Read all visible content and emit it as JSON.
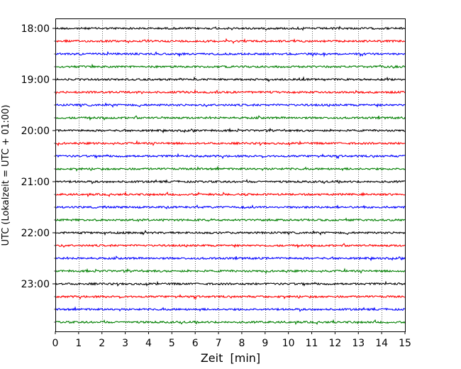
{
  "chart_data": {
    "type": "line",
    "xlabel": "Zeit  [min]",
    "ylabel": "UTC (Lokalzeit = UTC + 01:00)",
    "xlim": [
      0,
      15
    ],
    "x_ticks": [
      0,
      1,
      2,
      3,
      4,
      5,
      6,
      7,
      8,
      9,
      10,
      11,
      12,
      13,
      14,
      15
    ],
    "y_tick_labels": [
      "18:00",
      "19:00",
      "20:00",
      "21:00",
      "22:00",
      "23:00"
    ],
    "start_hour": "18:00",
    "end_hour": "24:00",
    "trace_interval_minutes": 15,
    "trace_count": 24,
    "trace_colors": [
      "#000000",
      "#ff0000",
      "#0000ff",
      "#007f00"
    ],
    "vertical_grid": "dotted",
    "horizontal_grid": false,
    "legend": "none"
  }
}
